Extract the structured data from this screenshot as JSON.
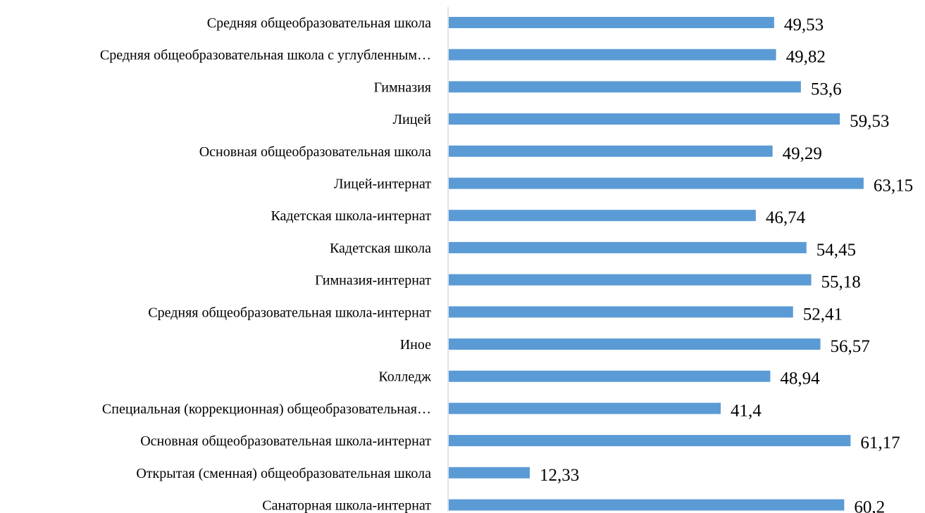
{
  "chart_data": {
    "type": "bar",
    "orientation": "horizontal",
    "categories": [
      "Средняя общеобразовательная школа",
      "Средняя общеобразовательная школа с углубленным…",
      "Гимназия",
      "Лицей",
      "Основная общеобразовательная школа",
      "Лицей-интернат",
      "Кадетская школа-интернат",
      "Кадетская школа",
      "Гимназия-интернат",
      "Средняя общеобразовательная школа-интернат",
      "Иное",
      "Колледж",
      "Специальная (коррекционная) общеобразовательная…",
      "Основная общеобразовательная школа-интернат",
      "Открытая (сменная) общеобразовательная школа",
      "Санаторная школа-интернат"
    ],
    "values": [
      49.53,
      49.82,
      53.6,
      59.53,
      49.29,
      63.15,
      46.74,
      54.45,
      55.18,
      52.41,
      56.57,
      48.94,
      41.4,
      61.17,
      12.33,
      60.2
    ],
    "value_labels": [
      "49,53",
      "49,82",
      "53,6",
      "59,53",
      "49,29",
      "63,15",
      "46,74",
      "54,45",
      "55,18",
      "52,41",
      "56,57",
      "48,94",
      "41,4",
      "61,17",
      "12,33",
      "60,2"
    ],
    "title": "",
    "xlabel": "",
    "ylabel": "",
    "xlim": [
      0,
      70
    ],
    "grid": false,
    "legend": "none",
    "colors": {
      "bar": "#5B9BD5",
      "axis": "#D9D9D9",
      "text": "#000000"
    }
  }
}
